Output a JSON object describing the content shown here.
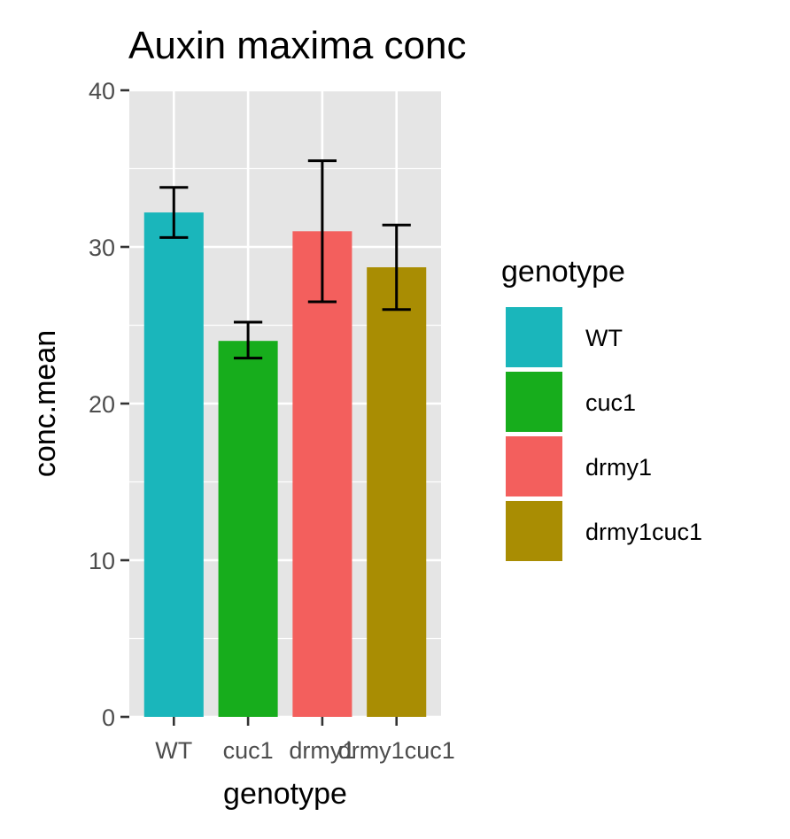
{
  "chart_data": {
    "type": "bar",
    "title": "Auxin maxima conc",
    "xlabel": "genotype",
    "ylabel": "conc.mean",
    "categories": [
      "WT",
      "cuc1",
      "drmy1",
      "drmy1cuc1"
    ],
    "values": [
      32.2,
      24.0,
      31.0,
      28.7
    ],
    "error_low": [
      30.6,
      22.9,
      26.5,
      26.0
    ],
    "error_high": [
      33.8,
      25.2,
      35.5,
      31.4
    ],
    "colors": [
      "#1ab6bb",
      "#17ad1c",
      "#f35f5d",
      "#a98d03"
    ],
    "ylim": [
      0,
      40
    ],
    "yticks": [
      0,
      10,
      20,
      30,
      40
    ],
    "grid": true,
    "legend": {
      "title": "genotype",
      "placement": "right",
      "entries": [
        "WT",
        "cuc1",
        "drmy1",
        "drmy1cuc1"
      ]
    }
  }
}
